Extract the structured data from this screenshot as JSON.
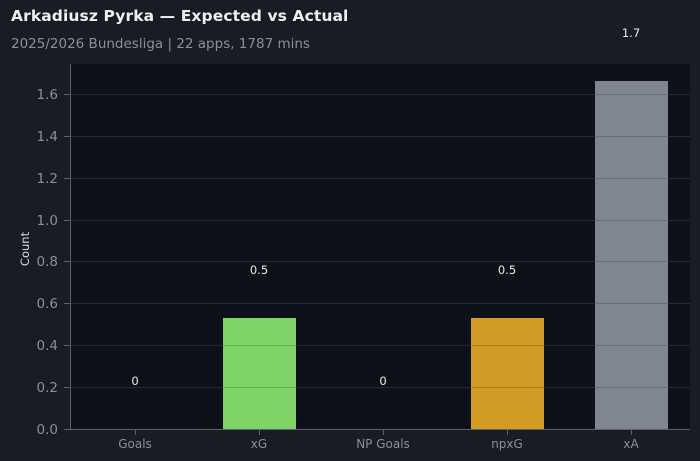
{
  "header": {
    "title": "Arkadiusz Pyrka — Expected vs Actual",
    "subtitle": "2025/2026 Bundesliga | 22 apps, 1787 mins"
  },
  "colors": {
    "background": "#181c24",
    "plot_background": "#0e1119",
    "goals": "#7ed365",
    "xG": "#7ed365",
    "np_goals": "#d29b24",
    "npxG": "#d29b24",
    "xA": "#80868f"
  },
  "chart_data": {
    "type": "bar",
    "title": "Arkadiusz Pyrka — Expected vs Actual",
    "subtitle": "2025/2026 Bundesliga | 22 apps, 1787 mins",
    "xlabel": "",
    "ylabel": "Count",
    "categories": [
      "Goals",
      "xG",
      "NP Goals",
      "npxG",
      "xA"
    ],
    "values": [
      0,
      0.53,
      0,
      0.53,
      1.66
    ],
    "value_labels": [
      "0",
      "0.5",
      "0",
      "0.5",
      "1.7"
    ],
    "bar_colors": [
      "#7ed365",
      "#7ed365",
      "#d29b24",
      "#d29b24",
      "#80868f"
    ],
    "yticks": [
      "0.0",
      "0.2",
      "0.4",
      "0.6",
      "0.8",
      "1.0",
      "1.2",
      "1.4",
      "1.6"
    ],
    "ylim": [
      0,
      1.74
    ],
    "grid": true,
    "legend": null
  }
}
